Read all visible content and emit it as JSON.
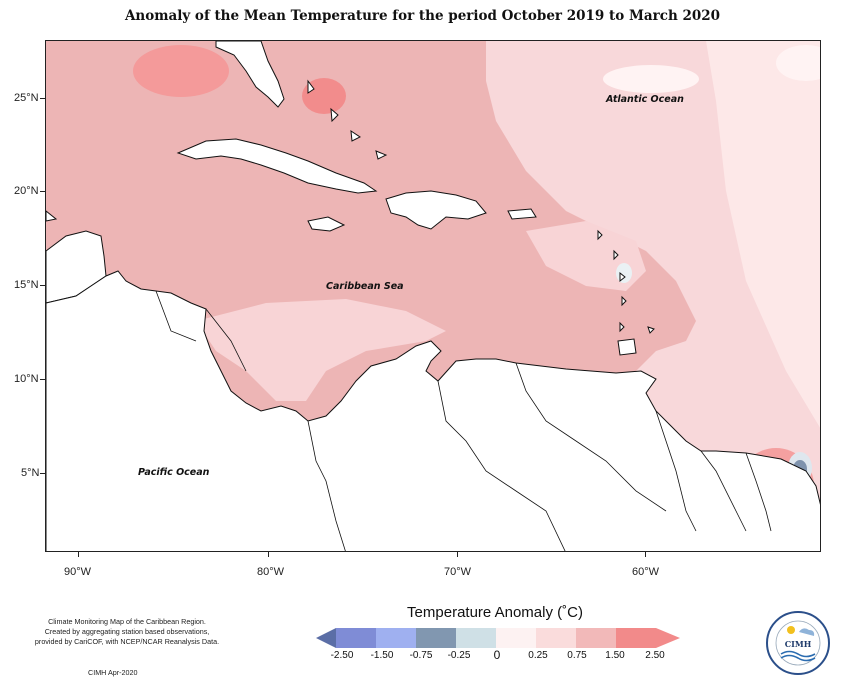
{
  "title": "Anomaly of the Mean Temperature for the period October 2019 to March 2020",
  "map": {
    "lat_labels": [
      "25°N",
      "20°N",
      "15°N",
      "10°N",
      "5°N"
    ],
    "lon_labels": [
      "90°W",
      "80°W",
      "70°W",
      "60°W"
    ],
    "ocean_labels": {
      "atlantic": "Atlantic Ocean",
      "caribbean": "Caribbean Sea",
      "pacific": "Pacific Ocean"
    },
    "colors": {
      "land": "#ffffff",
      "coast": "#111111",
      "anomaly_0_025": "#fde6e6",
      "anomaly_025_075": "#f8d4d6",
      "anomaly_075_150": "#edb5b5",
      "anomaly_150_250": "#f28c8c",
      "anomaly_neg": "#a9b6c9"
    }
  },
  "legend": {
    "title": "Temperature Anomaly (˚C)",
    "labels": [
      "-2.50",
      "-1.50",
      "-0.75",
      "-0.25",
      "0",
      "0.25",
      "0.75",
      "1.50",
      "2.50"
    ],
    "colors": [
      "#5b6ea6",
      "#7f8cd6",
      "#9fb0f0",
      "#8197b0",
      "#cfe0e6",
      "#fdf2f2",
      "#fadcdc",
      "#f2b9b9",
      "#f28a8a"
    ]
  },
  "footer": {
    "line1": "Climate Monitoring Map of the Caribbean Region.",
    "line2": "Created by aggregating station based observations,",
    "line3": "provided by CariCOF, with NCEP/NCAR Reanalysis Data.",
    "credit": "CIMH Apr-2020"
  },
  "logo": {
    "text": "CIMH"
  }
}
